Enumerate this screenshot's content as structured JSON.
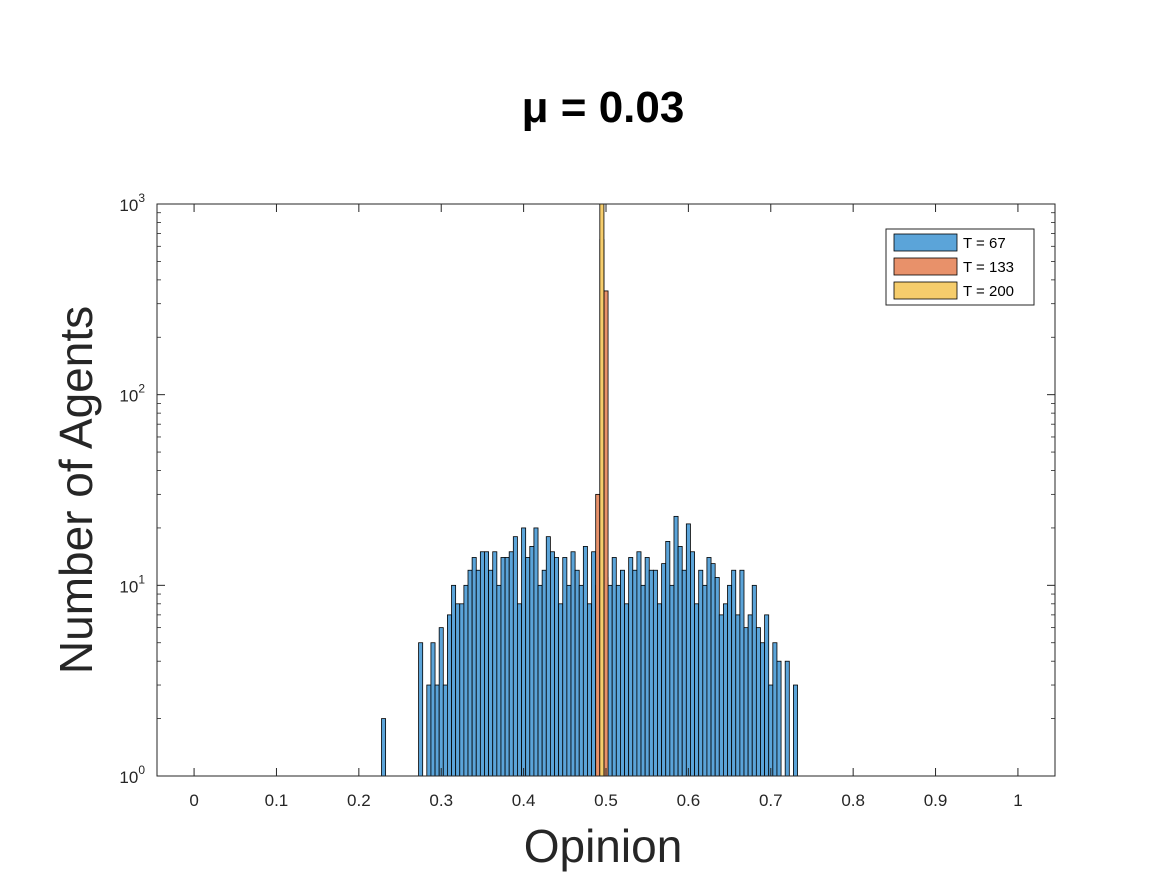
{
  "chart_data": {
    "type": "bar",
    "title": "μ = 0.03",
    "xlabel": "Opinion",
    "ylabel": "Number of Agents",
    "xlim": [
      -0.045,
      1.045
    ],
    "ylim": [
      1,
      1000
    ],
    "y_scale": "log",
    "grid": false,
    "legend_position": "top-right",
    "bin_width": 0.005,
    "x_ticks": [
      0,
      0.1,
      0.2,
      0.3,
      0.4,
      0.5,
      0.6,
      0.7,
      0.8,
      0.9,
      1
    ],
    "x_tick_labels": [
      "0",
      "0.1",
      "0.2",
      "0.3",
      "0.4",
      "0.5",
      "0.6",
      "0.7",
      "0.8",
      "0.9",
      "1"
    ],
    "y_ticks": [
      {
        "base": "10",
        "exp": "0",
        "value": 1
      },
      {
        "base": "10",
        "exp": "1",
        "value": 10
      },
      {
        "base": "10",
        "exp": "2",
        "value": 100
      },
      {
        "base": "10",
        "exp": "3",
        "value": 1000
      }
    ],
    "series": [
      {
        "name": "T = 67",
        "color": "#5ba4d9",
        "x_start": 0.2275,
        "values": [
          2,
          0,
          0,
          1,
          1,
          1,
          1,
          1,
          0,
          5,
          1,
          3,
          5,
          3,
          6,
          3,
          7,
          10,
          8,
          8,
          10,
          12,
          14,
          12,
          15,
          15,
          12,
          15,
          10,
          14,
          14,
          15,
          18,
          8,
          20,
          14,
          16,
          20,
          10,
          12,
          18,
          15,
          14,
          8,
          14,
          10,
          15,
          12,
          10,
          16,
          8,
          15,
          10,
          10,
          11,
          10,
          14,
          10,
          12,
          8,
          14,
          12,
          15,
          10,
          14,
          12,
          12,
          8,
          13,
          17,
          10,
          23,
          16,
          12,
          21,
          15,
          8,
          12,
          10,
          14,
          13,
          11,
          7,
          8,
          10,
          12,
          7,
          12,
          6,
          7,
          10,
          6,
          5,
          7,
          3,
          5,
          4,
          1,
          4,
          1,
          3
        ]
      },
      {
        "name": "T = 133",
        "color": "#e8916a",
        "x_start": 0.4875,
        "values": [
          30,
          650,
          350
        ]
      },
      {
        "name": "T = 200",
        "color": "#f6cd6c",
        "x_start": 0.4925,
        "values": [
          1000
        ]
      }
    ]
  }
}
